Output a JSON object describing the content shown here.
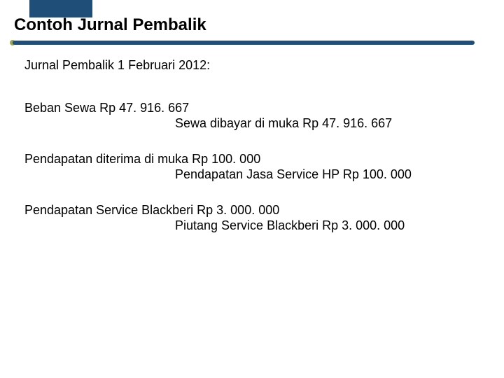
{
  "colors": {
    "accent": "#1f4e79",
    "dot": "#9aa84f",
    "text": "#000000",
    "background": "#ffffff"
  },
  "typography": {
    "title_fontsize_pt": 18,
    "body_fontsize_pt": 13,
    "font_family": "Arial"
  },
  "title": "Contoh Jurnal Pembalik",
  "subtitle": "Jurnal Pembalik 1 Februari 2012:",
  "entries": [
    {
      "debit": "Beban Sewa Rp 47. 916. 667",
      "credit": "Sewa dibayar di muka Rp 47. 916. 667"
    },
    {
      "debit": "Pendapatan diterima di muka Rp 100. 000",
      "credit": "Pendapatan Jasa Service HP Rp 100. 000"
    },
    {
      "debit": "Pendapatan Service Blackberi Rp 3. 000. 000",
      "credit": "Piutang Service Blackberi Rp 3. 000. 000"
    }
  ]
}
